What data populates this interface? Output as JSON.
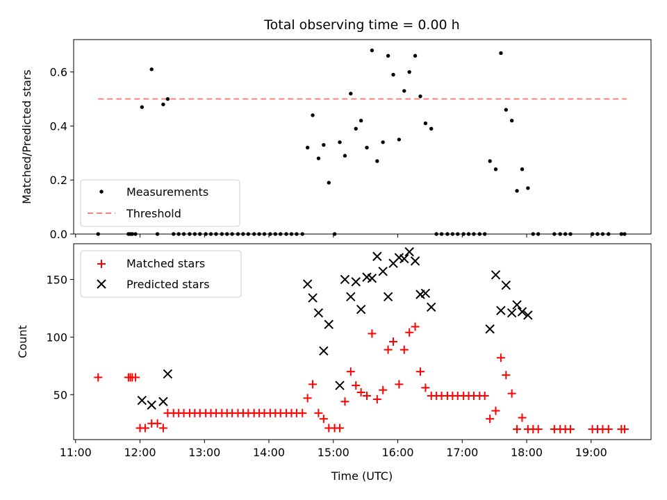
{
  "chart_data": [
    {
      "type": "scatter",
      "title": "Total observing time = 0.00 h",
      "xlabel": "",
      "ylabel": "Matched/Predicted stars",
      "xlim_hours": [
        10.97,
        19.93
      ],
      "ylim": [
        0,
        0.72
      ],
      "yticks": [
        0.0,
        0.2,
        0.4,
        0.6
      ],
      "ytick_labels": [
        "0.0",
        "0.2",
        "0.4",
        "0.6"
      ],
      "xticks_hours": [
        11,
        12,
        13,
        14,
        15,
        16,
        17,
        18,
        19
      ],
      "grid": false,
      "legend": {
        "placement": "lower-left",
        "entries": [
          "Measurements",
          "Threshold"
        ]
      },
      "threshold": {
        "name": "Threshold",
        "value": 0.5,
        "x_start": 11.35,
        "x_end": 19.55,
        "color": "#ff7f7f"
      },
      "series": [
        {
          "name": "Measurements",
          "marker": "dot",
          "color": "#000000",
          "x": [
            11.35,
            11.82,
            11.85,
            11.88,
            11.93,
            12.03,
            12.18,
            12.27,
            12.36,
            12.43,
            12.52,
            12.6,
            12.68,
            12.77,
            12.85,
            12.93,
            13.02,
            13.1,
            13.18,
            13.27,
            13.35,
            13.43,
            13.52,
            13.6,
            13.68,
            13.77,
            13.85,
            13.93,
            14.02,
            14.1,
            14.18,
            14.27,
            14.35,
            14.43,
            14.52,
            14.6,
            14.68,
            14.77,
            14.85,
            14.93,
            15.02,
            15.1,
            15.18,
            15.27,
            15.35,
            15.43,
            15.52,
            15.6,
            15.68,
            15.77,
            15.85,
            15.93,
            16.02,
            16.1,
            16.18,
            16.27,
            16.35,
            16.43,
            16.52,
            16.6,
            16.68,
            16.77,
            16.85,
            16.93,
            17.02,
            17.1,
            17.18,
            17.27,
            17.35,
            17.43,
            17.52,
            17.6,
            17.68,
            17.77,
            17.85,
            17.93,
            18.02,
            18.1,
            18.18,
            18.43,
            18.52,
            18.6,
            18.68,
            19.02,
            19.1,
            19.18,
            19.27,
            19.47,
            19.52
          ],
          "y": [
            0.0,
            0.0,
            0.0,
            0.0,
            0.0,
            0.47,
            0.61,
            0.0,
            0.48,
            0.5,
            0.0,
            0.0,
            0.0,
            0.0,
            0.0,
            0.0,
            0.0,
            0.0,
            0.0,
            0.0,
            0.0,
            0.0,
            0.0,
            0.0,
            0.0,
            0.0,
            0.0,
            0.0,
            0.0,
            0.0,
            0.0,
            0.0,
            0.0,
            0.0,
            0.0,
            0.32,
            0.44,
            0.28,
            0.33,
            0.19,
            0.0,
            0.34,
            0.29,
            0.52,
            0.39,
            0.42,
            0.32,
            0.68,
            0.27,
            0.34,
            0.66,
            0.59,
            0.35,
            0.53,
            0.6,
            0.66,
            0.51,
            0.41,
            0.39,
            0.0,
            0.0,
            0.0,
            0.0,
            0.0,
            0.0,
            0.0,
            0.0,
            0.0,
            0.0,
            0.27,
            0.24,
            0.67,
            0.46,
            0.42,
            0.16,
            0.24,
            0.17,
            0.0,
            0.0,
            0.0,
            0.0,
            0.0,
            0.0,
            0.0,
            0.0,
            0.0,
            0.0,
            0.0,
            0.0
          ]
        }
      ]
    },
    {
      "type": "scatter",
      "title": "",
      "xlabel": "Time (UTC)",
      "ylabel": "Count",
      "xlim_hours": [
        10.97,
        19.93
      ],
      "ylim": [
        11,
        181
      ],
      "yticks": [
        50,
        100,
        150
      ],
      "ytick_labels": [
        "50",
        "100",
        "150"
      ],
      "xticks_hours": [
        11,
        12,
        13,
        14,
        15,
        16,
        17,
        18,
        19
      ],
      "xtick_labels": [
        "11:00",
        "12:00",
        "13:00",
        "14:00",
        "15:00",
        "16:00",
        "17:00",
        "18:00",
        "19:00"
      ],
      "grid": false,
      "legend": {
        "placement": "top-left",
        "entries": [
          "Matched stars",
          "Predicted stars"
        ]
      },
      "series": [
        {
          "name": "Matched stars",
          "marker": "plus",
          "color": "#ff0000",
          "x": [
            11.35,
            11.82,
            11.85,
            11.88,
            11.93,
            12.0,
            12.08,
            12.18,
            12.27,
            12.36,
            12.43,
            12.52,
            12.6,
            12.68,
            12.77,
            12.85,
            12.93,
            13.02,
            13.1,
            13.18,
            13.27,
            13.35,
            13.43,
            13.52,
            13.6,
            13.68,
            13.77,
            13.85,
            13.93,
            14.02,
            14.1,
            14.18,
            14.27,
            14.35,
            14.43,
            14.52,
            14.6,
            14.68,
            14.77,
            14.85,
            14.93,
            15.02,
            15.1,
            15.18,
            15.27,
            15.35,
            15.43,
            15.52,
            15.6,
            15.68,
            15.77,
            15.85,
            15.93,
            16.02,
            16.1,
            16.18,
            16.27,
            16.35,
            16.43,
            16.52,
            16.6,
            16.68,
            16.77,
            16.85,
            16.93,
            17.02,
            17.1,
            17.18,
            17.27,
            17.35,
            17.43,
            17.52,
            17.6,
            17.68,
            17.77,
            17.85,
            17.93,
            18.02,
            18.1,
            18.18,
            18.43,
            18.52,
            18.6,
            18.68,
            19.02,
            19.1,
            19.18,
            19.27,
            19.47,
            19.52
          ],
          "y": [
            65,
            65,
            65,
            65,
            65,
            21,
            21,
            25,
            25,
            21,
            34,
            34,
            34,
            34,
            34,
            34,
            34,
            34,
            34,
            34,
            34,
            34,
            34,
            34,
            34,
            34,
            34,
            34,
            34,
            34,
            34,
            34,
            34,
            34,
            34,
            34,
            47,
            59,
            34,
            29,
            21,
            21,
            21,
            44,
            70,
            58,
            52,
            49,
            103,
            46,
            54,
            89,
            96,
            59,
            89,
            104,
            109,
            70,
            56,
            49,
            49,
            49,
            49,
            49,
            49,
            49,
            49,
            49,
            49,
            49,
            29,
            36,
            82,
            67,
            51,
            20,
            30,
            20,
            20,
            20,
            20,
            20,
            20,
            20,
            20,
            20,
            20,
            20,
            20,
            20
          ]
        },
        {
          "name": "Predicted stars",
          "marker": "x",
          "color": "#000000",
          "x": [
            12.03,
            12.18,
            12.36,
            12.43,
            14.6,
            14.68,
            14.77,
            14.85,
            14.93,
            15.1,
            15.18,
            15.27,
            15.35,
            15.43,
            15.52,
            15.6,
            15.68,
            15.77,
            15.85,
            15.93,
            16.02,
            16.1,
            16.18,
            16.27,
            16.35,
            16.43,
            16.52,
            17.43,
            17.52,
            17.6,
            17.68,
            17.77,
            17.85,
            17.93,
            18.02
          ],
          "y": [
            45,
            41,
            44,
            68,
            146,
            134,
            121,
            88,
            111,
            58,
            150,
            135,
            148,
            124,
            152,
            151,
            170,
            157,
            135,
            164,
            169,
            168,
            174,
            166,
            137,
            138,
            126,
            107,
            154,
            123,
            145,
            121,
            128,
            122,
            119
          ]
        }
      ]
    }
  ]
}
